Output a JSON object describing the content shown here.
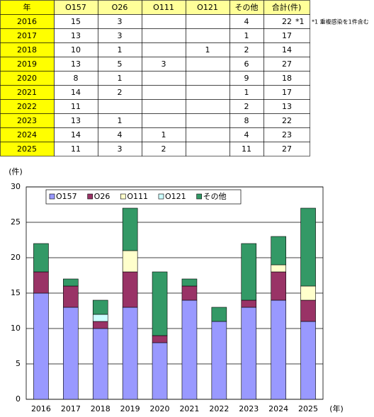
{
  "table": {
    "header": [
      "年",
      "O157",
      "O26",
      "O111",
      "O121",
      "その他",
      "合計(件)"
    ],
    "rows": [
      [
        "2016",
        15,
        3,
        null,
        null,
        4,
        22
      ],
      [
        "2017",
        13,
        3,
        null,
        null,
        1,
        17
      ],
      [
        "2018",
        10,
        1,
        null,
        1,
        2,
        14
      ],
      [
        "2019",
        13,
        5,
        3,
        null,
        6,
        27
      ],
      [
        "2020",
        8,
        1,
        null,
        null,
        9,
        18
      ],
      [
        "2021",
        14,
        2,
        null,
        null,
        1,
        17
      ],
      [
        "2022",
        11,
        null,
        null,
        null,
        2,
        13
      ],
      [
        "2023",
        13,
        1,
        null,
        null,
        8,
        22
      ],
      [
        "2024",
        14,
        4,
        1,
        null,
        4,
        23
      ],
      [
        "2025",
        11,
        3,
        2,
        null,
        11,
        27
      ]
    ],
    "marker": "*1",
    "note": "*1 重複感染を1件含む"
  },
  "chart_data": {
    "type": "stacked-bar",
    "y_label": "(件)",
    "x_label": "(年)",
    "categories": [
      "2016",
      "2017",
      "2018",
      "2019",
      "2020",
      "2021",
      "2022",
      "2023",
      "2024",
      "2025"
    ],
    "series": [
      {
        "name": "O157",
        "color": "#9999ff",
        "values": [
          15,
          13,
          10,
          13,
          8,
          14,
          11,
          13,
          14,
          11
        ]
      },
      {
        "name": "O26",
        "color": "#993366",
        "values": [
          3,
          3,
          1,
          5,
          1,
          2,
          null,
          1,
          4,
          3
        ]
      },
      {
        "name": "O111",
        "color": "#ffffcc",
        "values": [
          null,
          null,
          null,
          3,
          null,
          null,
          null,
          null,
          1,
          2
        ]
      },
      {
        "name": "O121",
        "color": "#ccffff",
        "values": [
          null,
          null,
          1,
          null,
          null,
          null,
          null,
          null,
          null,
          null
        ]
      },
      {
        "name": "その他",
        "color": "#339966",
        "values": [
          4,
          1,
          2,
          6,
          9,
          1,
          2,
          8,
          4,
          11
        ]
      }
    ],
    "ylim": [
      0,
      30
    ],
    "yticks": [
      0,
      5,
      10,
      15,
      20,
      25,
      30
    ],
    "grid": true,
    "legend": "top-left"
  }
}
